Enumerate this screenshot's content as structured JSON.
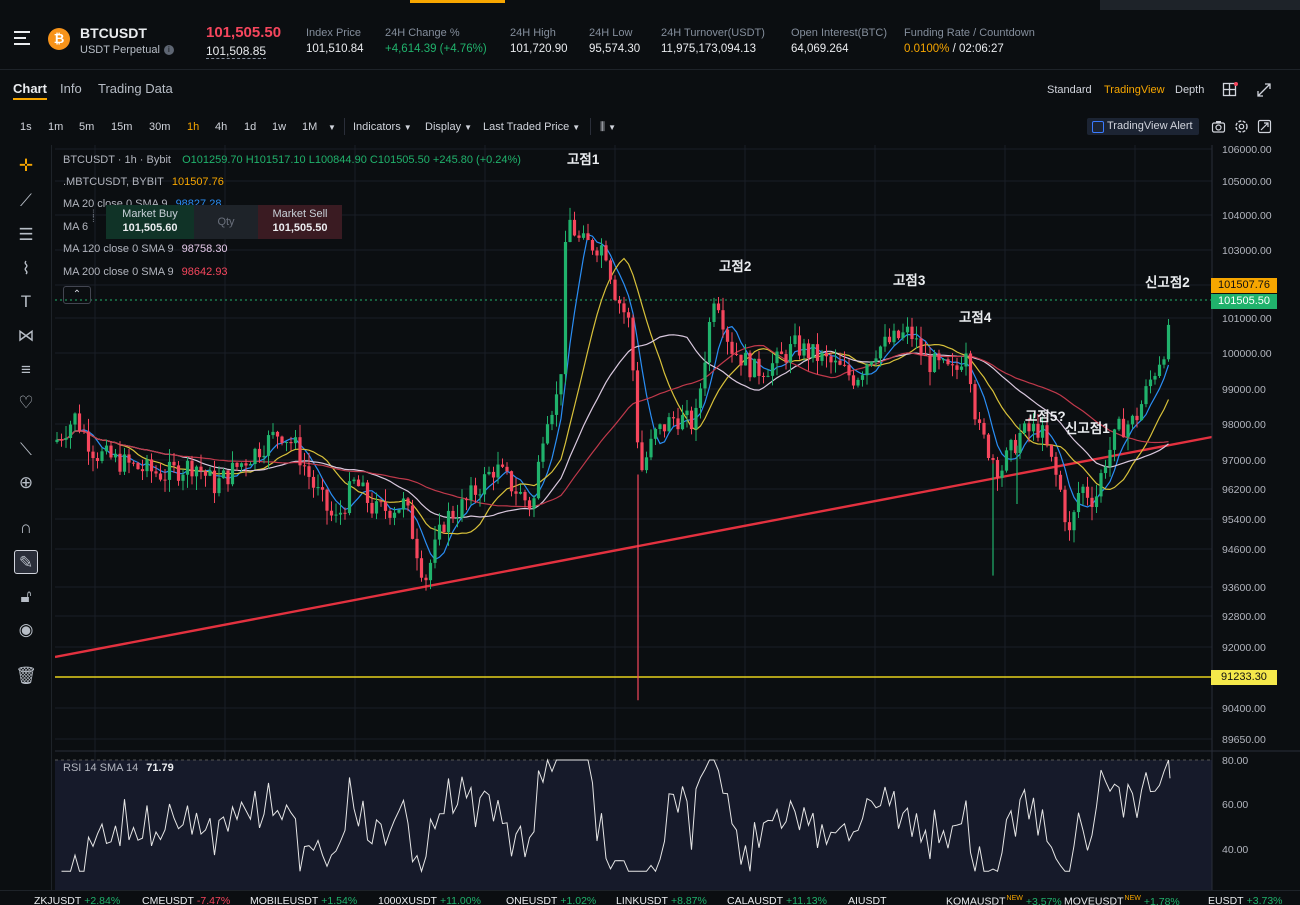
{
  "header": {
    "symbol": "BTCUSDT",
    "contract": "USDT Perpetual",
    "coin_glyph": "₿",
    "last_price": "101,505.50",
    "mark_price": "101,508.85",
    "stats": [
      {
        "label": "Index Price",
        "value": "101,510.84"
      },
      {
        "label": "24H Change %",
        "value": "+4,614.39 (+4.76%)"
      },
      {
        "label": "24H High",
        "value": "101,720.90"
      },
      {
        "label": "24H Low",
        "value": "95,574.30"
      },
      {
        "label": "24H Turnover(USDT)",
        "value": "11,975,173,094.13"
      },
      {
        "label": "Open Interest(BTC)",
        "value": "64,069.264"
      },
      {
        "label": "Funding Rate / Countdown",
        "value_rate": "0.0100%",
        "value_countdown": "/ 02:06:27"
      }
    ]
  },
  "tabs": [
    "Chart",
    "Info",
    "Trading Data"
  ],
  "view_options": [
    "Standard",
    "TradingView",
    "Depth"
  ],
  "timeframes": [
    "1s",
    "1m",
    "5m",
    "15m",
    "30m",
    "1h",
    "4h",
    "1d",
    "1w",
    "1M"
  ],
  "toolbar": {
    "indicators": "Indicators",
    "display": "Display",
    "price_type": "Last Traded Price",
    "tv_alert": "TradingView Alert"
  },
  "legend": {
    "title": "BTCUSDT · 1h · Bybit",
    "o": "O101259.70",
    "h": "H101517.10",
    "l": "L100844.90",
    "c": "C101505.50",
    "chg": "+245.80 (+0.24%)",
    "mark_label": ".MBTCUSDT, BYBIT",
    "mark_value": "101507.76",
    "ma120_label": "MA 120 close 0 SMA 9",
    "ma120_value": "98758.30",
    "ma200_label": "MA 200 close 0 SMA 9",
    "ma200_value": "98642.93",
    "ma20_label": "MA 20 close 0 SMA 9",
    "ma20_value": "98827.28",
    "ma60_label": "MA 6"
  },
  "trade_box": {
    "buy_label": "Market Buy",
    "buy_price": "101,505.60",
    "qty": "Qty",
    "sell_label": "Market Sell",
    "sell_price": "101,505.50"
  },
  "price_tags": {
    "mark": "101507.76",
    "last": "101505.50",
    "horizontal_line": "91233.30"
  },
  "annotations": [
    "고점1",
    "고점2",
    "고점3",
    "고점4",
    "고점5?",
    "신고점1",
    "신고점2"
  ],
  "rsi": {
    "label": "RSI 14 SMA 14",
    "value": "71.79",
    "axis": [
      "80.00",
      "60.00",
      "40.00"
    ]
  },
  "price_axis": [
    "106000.00",
    "105000.00",
    "104000.00",
    "103000.00",
    "102000.00",
    "101000.00",
    "100000.00",
    "99000.00",
    "98000.00",
    "97000.00",
    "96200.00",
    "95400.00",
    "94600.00",
    "93600.00",
    "92800.00",
    "92000.00",
    "91200.00",
    "90400.00",
    "89650.00"
  ],
  "colors": {
    "up": "#20b26c",
    "down": "#f6465d",
    "accent": "#f7a600"
  },
  "ticker": [
    {
      "sym": "ZKJUSDT",
      "chg": "+2.84%",
      "dir": "up"
    },
    {
      "sym": "CMEUSDT",
      "chg": "-7.47%",
      "dir": "dn"
    },
    {
      "sym": "MOBILEUSDT",
      "chg": "+1.54%",
      "dir": "up"
    },
    {
      "sym": "1000XUSDT",
      "chg": "+11.00%",
      "dir": "up"
    },
    {
      "sym": "ONEUSDT",
      "chg": "+1.02%",
      "dir": "up"
    },
    {
      "sym": "LINKUSDT",
      "chg": "+8.87%",
      "dir": "up"
    },
    {
      "sym": "CALAUSDT",
      "chg": "+11.13%",
      "dir": "up"
    },
    {
      "sym": "AIUSDT",
      "chg": "",
      "dir": "up"
    },
    {
      "sym": "KOMAUSDT",
      "chg": "+3.57%",
      "dir": "up",
      "new": "NEW"
    },
    {
      "sym": "MOVEUSDT",
      "chg": "+1.78%",
      "dir": "up",
      "new": "NEW"
    },
    {
      "sym": "EUSDT",
      "chg": "+3.73%",
      "dir": "up"
    }
  ]
}
